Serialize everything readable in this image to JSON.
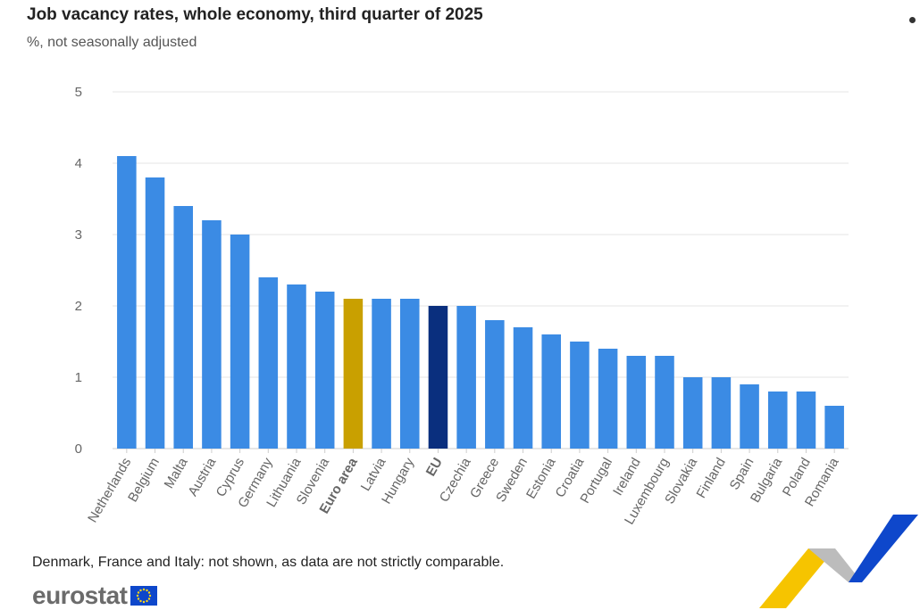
{
  "header": {
    "title": "Job vacancy rates, whole economy, third quarter of 2025",
    "subtitle": "%, not seasonally adjusted"
  },
  "footer": {
    "note": "Denmark, France and Italy: not shown, as data are not strictly comparable.",
    "logo_text": "eurostat"
  },
  "colors": {
    "default_bar": "#3b8be4",
    "euro_area_bar": "#c9a000",
    "eu_bar": "#0a2f7e",
    "grid": "#e6e6e6",
    "axis_text": "#666666"
  },
  "icons": {
    "menu": "menu-dot-icon",
    "flag": "eu-flag-icon",
    "decor": "decorative-chevron-icon"
  },
  "chart_data": {
    "type": "bar",
    "title": "Job vacancy rates, whole economy, third quarter of 2025",
    "subtitle": "%, not seasonally adjusted",
    "categories": [
      "Netherlands",
      "Belgium",
      "Malta",
      "Austria",
      "Cyprus",
      "Germany",
      "Lithuania",
      "Slovenia",
      "Euro area",
      "Latvia",
      "Hungary",
      "EU",
      "Czechia",
      "Greece",
      "Sweden",
      "Estonia",
      "Croatia",
      "Portugal",
      "Ireland",
      "Luxembourg",
      "Slovakia",
      "Finland",
      "Spain",
      "Bulgaria",
      "Poland",
      "Romania"
    ],
    "values": [
      4.1,
      3.8,
      3.4,
      3.2,
      3.0,
      2.4,
      2.3,
      2.2,
      2.1,
      2.1,
      2.1,
      2.0,
      2.0,
      1.8,
      1.7,
      1.6,
      1.5,
      1.4,
      1.3,
      1.3,
      1.0,
      1.0,
      0.9,
      0.8,
      0.8,
      0.6
    ],
    "highlight": {
      "Euro area": "euro_area_bar",
      "EU": "eu_bar"
    },
    "bold_categories": [
      "Euro area",
      "EU"
    ],
    "ylim": [
      0,
      5
    ],
    "yticks": [
      0,
      1,
      2,
      3,
      4,
      5
    ],
    "xlabel": "",
    "ylabel": "",
    "grid": true,
    "legend": "none"
  }
}
